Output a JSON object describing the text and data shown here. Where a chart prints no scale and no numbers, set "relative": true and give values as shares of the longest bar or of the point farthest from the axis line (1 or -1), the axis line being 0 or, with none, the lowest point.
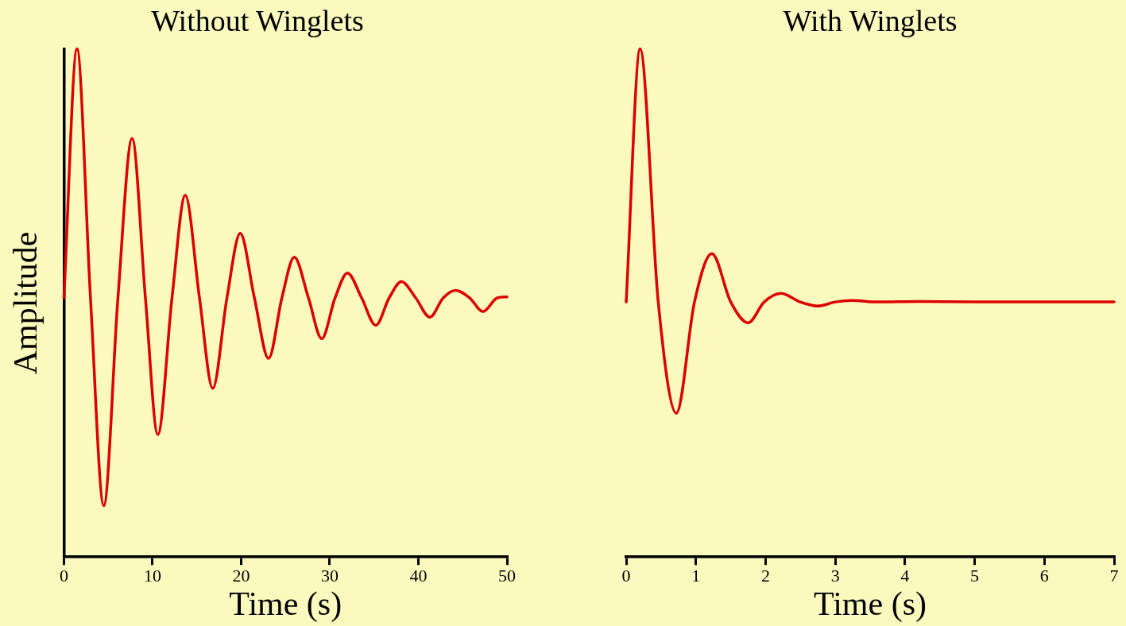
{
  "chart_data": [
    {
      "type": "line",
      "title": "Without Winglets",
      "xlabel": "Time (s)",
      "ylabel": "Amplitude",
      "relative": true,
      "tick_labels": "x",
      "grid": false,
      "legend": false,
      "marker": "none",
      "line_style": "solid",
      "xlim": [
        0,
        50
      ],
      "xticks": [
        0,
        10,
        20,
        30,
        40,
        50
      ],
      "series": [
        {
          "color": "#dd0000",
          "x": [
            0,
            1.48,
            3.0,
            4.5,
            6.1,
            7.7,
            9.2,
            10.6,
            12.2,
            13.7,
            15.3,
            16.8,
            18.4,
            19.9,
            21.5,
            23.1,
            24.6,
            26.0,
            27.6,
            29.1,
            30.6,
            32.0,
            33.6,
            35.2,
            36.7,
            38.1,
            39.7,
            41.3,
            42.8,
            44.2,
            45.8,
            47.3,
            48.9,
            50
          ],
          "values": [
            0.51,
            1.0,
            0.51,
            0.101,
            0.51,
            0.824,
            0.51,
            0.241,
            0.51,
            0.712,
            0.51,
            0.332,
            0.51,
            0.637,
            0.51,
            0.391,
            0.51,
            0.59,
            0.51,
            0.43,
            0.51,
            0.559,
            0.51,
            0.456,
            0.51,
            0.542,
            0.51,
            0.472,
            0.51,
            0.525,
            0.51,
            0.483,
            0.51,
            0.512
          ]
        }
      ]
    },
    {
      "type": "line",
      "title": "With Winglets",
      "xlabel": "Time (s)",
      "relative": true,
      "tick_labels": "x",
      "grid": false,
      "legend": false,
      "marker": "none",
      "line_style": "solid",
      "xlim": [
        0,
        7
      ],
      "xticks": [
        0,
        1,
        2,
        3,
        4,
        5,
        6,
        7
      ],
      "series": [
        {
          "color": "#dd0000",
          "x": [
            0,
            0.2,
            0.46,
            0.72,
            0.98,
            1.23,
            1.5,
            1.75,
            1.98,
            2.22,
            2.5,
            2.75,
            3.0,
            3.24,
            3.6,
            4.2,
            5,
            6,
            7
          ],
          "values": [
            0.502,
            1.0,
            0.502,
            0.283,
            0.502,
            0.597,
            0.502,
            0.461,
            0.502,
            0.519,
            0.502,
            0.494,
            0.502,
            0.505,
            0.502,
            0.503,
            0.502,
            0.502,
            0.502
          ]
        }
      ]
    }
  ]
}
